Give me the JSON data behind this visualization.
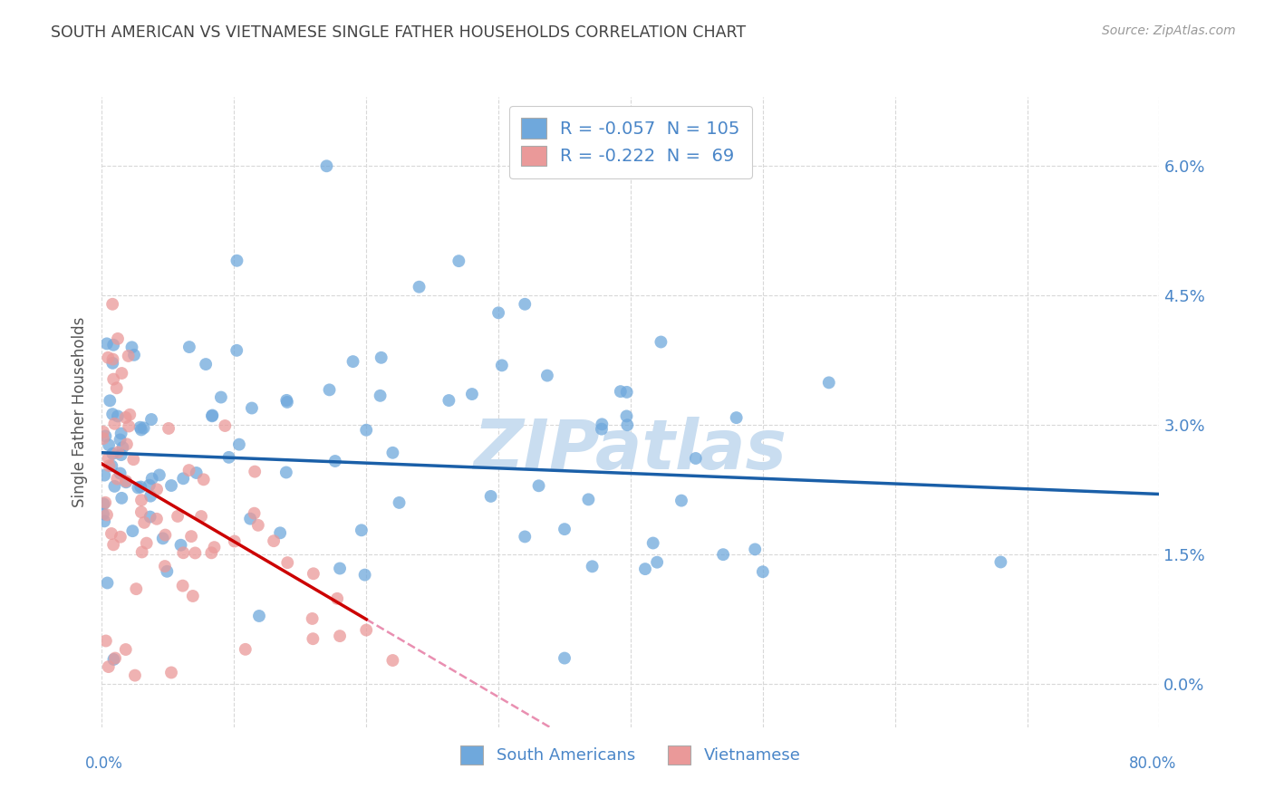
{
  "title": "SOUTH AMERICAN VS VIETNAMESE SINGLE FATHER HOUSEHOLDS CORRELATION CHART",
  "source": "Source: ZipAtlas.com",
  "ylabel": "Single Father Households",
  "ytick_vals": [
    0.0,
    1.5,
    3.0,
    4.5,
    6.0
  ],
  "xlim": [
    0.0,
    80.0
  ],
  "ylim": [
    -0.5,
    6.8
  ],
  "blue_color": "#6fa8dc",
  "pink_color": "#ea9999",
  "blue_line_color": "#1a5fa8",
  "pink_line_solid_color": "#cc0000",
  "pink_line_dash_color": "#e06090",
  "title_color": "#434343",
  "axis_color": "#4a86c8",
  "source_color": "#999999",
  "watermark_color": "#c9ddf0",
  "background_color": "#ffffff",
  "grid_color": "#d8d8d8",
  "R_blue": -0.057,
  "N_blue": 105,
  "R_pink": -0.222,
  "N_pink": 69,
  "legend_label_blue": "South Americans",
  "legend_label_pink": "Vietnamese",
  "blue_intercept": 2.68,
  "blue_slope": -0.006,
  "pink_intercept": 2.55,
  "pink_slope": -0.09,
  "seed": 42
}
